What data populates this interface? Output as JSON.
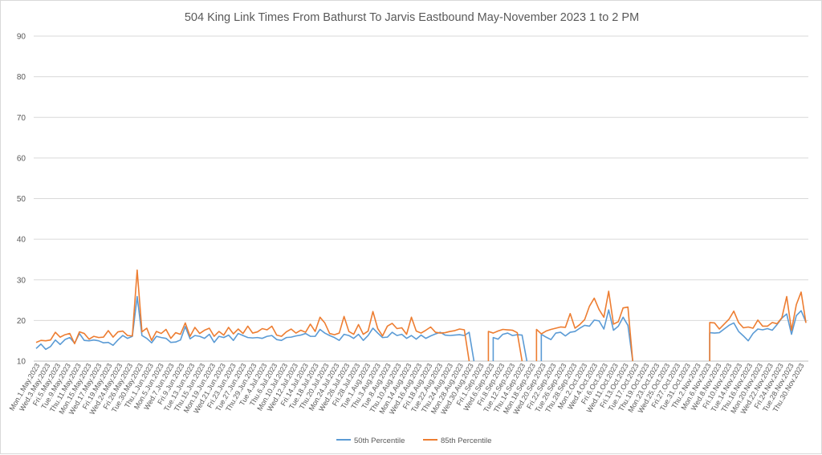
{
  "chart_data": {
    "type": "line",
    "title": "504 King Link Times From Bathurst To Jarvis Eastbound May-November 2023 1 to 2 PM",
    "xlabel": "",
    "ylabel": "",
    "ylim": [
      10,
      90
    ],
    "yticks": [
      10,
      20,
      30,
      40,
      50,
      60,
      70,
      80,
      90
    ],
    "grid": true,
    "legend_position": "bottom",
    "colors": {
      "p50": "#5b9bd5",
      "p85": "#ed7d31",
      "grid": "#d9d9d9",
      "axis": "#bfbfbf",
      "text": "#595959"
    },
    "tick_labels": [
      "Mon.1.May.2023",
      "Wed.3.May.2023",
      "Fri.5.May.2023",
      "Tue.9.May.2023",
      "Thu.11.May.2023",
      "Mon.15.May.2023",
      "Wed.17.May.2023",
      "Fri.19.May.2023",
      "Wed.24.May.2023",
      "Fri.26.May.2023",
      "Tue.30.May.2023",
      "Thu.1.Jun.2023",
      "Mon.5.Jun.2023",
      "Wed.7.Jun.2023",
      "Fri.9.Jun.2023",
      "Tue.13.Jun.2023",
      "Thu.15.Jun.2023",
      "Mon.19.Jun.2023",
      "Wed.21.Jun.2023",
      "Fri.23.Jun.2023",
      "Tue.27.Jun.2023",
      "Thu.29.Jun.2023",
      "Tue.4.Jul.2023",
      "Thu.6.Jul.2023",
      "Mon.10.Jul.2023",
      "Wed.12.Jul.2023",
      "Fri.14.Jul.2023",
      "Tue.18.Jul.2023",
      "Thu.20.Jul.2023",
      "Mon.24.Jul.2023",
      "Wed.26.Jul.2023",
      "Fri.28.Jul.2023",
      "Tue.1.Aug.2023",
      "Thu.3.Aug.2023",
      "Tue.8.Aug.2023",
      "Thu.10.Aug.2023",
      "Mon.14.Aug.2023",
      "Wed.16.Aug.2023",
      "Fri.18.Aug.2023",
      "Tue.22.Aug.2023",
      "Thu.24.Aug.2023",
      "Mon.28.Aug.2023",
      "Wed.30.Aug.2023",
      "Fri.1.Sep.2023",
      "Wed.6.Sep.2023",
      "Fri.8.Sep.2023",
      "Tue.12.Sep.2023",
      "Thu.14.Sep.2023",
      "Mon.18.Sep.2023",
      "Wed.20.Sep.2023",
      "Fri.22.Sep.2023",
      "Tue.26.Sep.2023",
      "Thu.28.Sep.2023",
      "Mon.2.Oct.2023",
      "Wed.4.Oct.2023",
      "Fri.6.Oct.2023",
      "Wed.11.Oct.2023",
      "Fri.13.Oct.2023",
      "Tue.17.Oct.2023",
      "Thu.19.Oct.2023",
      "Mon.23.Oct.2023",
      "Wed.25.Oct.2023",
      "Fri.27.Oct.2023",
      "Tue.31.Oct.2023",
      "Thu.2.Nov.2023",
      "Mon.6.Nov.2023",
      "Wed.8.Nov.2023",
      "Fri.10.Nov.2023",
      "Tue.14.Nov.2023",
      "Thu.16.Nov.2023",
      "Mon.20.Nov.2023",
      "Wed.22.Nov.2023",
      "Fri.24.Nov.2023",
      "Tue.28.Nov.2023",
      "Thu.30.Nov.2023"
    ],
    "series": [
      {
        "name": "50th Percentile",
        "values": [
          13.1,
          14.2,
          12.9,
          13.6,
          15.2,
          14.1,
          15.3,
          15.8,
          14.4,
          16.8,
          15.1,
          15.0,
          15.2,
          15.0,
          14.5,
          14.6,
          13.9,
          15.2,
          16.3,
          15.6,
          16.1,
          25.9,
          16.3,
          15.6,
          14.5,
          16.1,
          15.8,
          15.6,
          14.6,
          14.7,
          15.2,
          18.5,
          15.5,
          16.3,
          16.1,
          15.6,
          16.6,
          14.6,
          16.1,
          15.8,
          16.4,
          15.1,
          16.8,
          16.3,
          15.8,
          15.7,
          15.8,
          15.6,
          16.1,
          16.3,
          15.3,
          15.1,
          15.8,
          15.9,
          16.2,
          16.4,
          16.8,
          16.1,
          16.1,
          17.8,
          16.9,
          16.3,
          15.8,
          15.1,
          16.6,
          16.3,
          15.6,
          16.6,
          15.1,
          16.3,
          18.1,
          16.9,
          15.8,
          15.9,
          17.1,
          16.3,
          16.6,
          15.6,
          16.3,
          15.4,
          16.4,
          15.6,
          16.2,
          16.7,
          17.1,
          16.4,
          16.3,
          16.4,
          16.5,
          16.3,
          17.1,
          null,
          null,
          null,
          null,
          15.8,
          15.4,
          16.6,
          16.9,
          16.3,
          16.5,
          16.4,
          null,
          null,
          null,
          16.6,
          15.9,
          15.3,
          16.9,
          17.1,
          16.2,
          17.1,
          17.3,
          18.1,
          18.8,
          18.6,
          20.1,
          19.9,
          17.9,
          22.6,
          17.6,
          18.6,
          20.8,
          18.8,
          null,
          null,
          null,
          null,
          null,
          null,
          null,
          null,
          null,
          null,
          null,
          null,
          null,
          null,
          null,
          null,
          17.0,
          16.9,
          17.0,
          17.9,
          18.8,
          19.4,
          17.3,
          16.2,
          15.0,
          16.8,
          17.9,
          17.7,
          18.0,
          17.6,
          19.0,
          20.6,
          21.6,
          16.6,
          21.2,
          22.4,
          19.6
        ]
      },
      {
        "name": "85th Percentile",
        "values": [
          14.6,
          15.1,
          15.0,
          15.2,
          17.1,
          15.9,
          16.5,
          16.8,
          14.3,
          17.2,
          16.8,
          15.4,
          16.1,
          15.8,
          15.9,
          17.5,
          15.9,
          17.2,
          17.4,
          16.3,
          16.2,
          32.4,
          17.2,
          18.1,
          15.1,
          17.3,
          16.8,
          17.8,
          15.6,
          17.0,
          16.6,
          19.4,
          16.1,
          18.3,
          16.8,
          17.6,
          18.1,
          16.1,
          17.3,
          16.4,
          18.3,
          16.7,
          17.9,
          16.8,
          18.6,
          16.9,
          17.2,
          18.0,
          17.7,
          18.6,
          16.4,
          16.1,
          17.2,
          17.9,
          16.9,
          17.6,
          17.1,
          19.1,
          17.3,
          20.8,
          19.4,
          16.8,
          16.5,
          16.9,
          21.0,
          17.3,
          16.6,
          19.0,
          16.6,
          17.4,
          22.2,
          18.0,
          16.2,
          18.6,
          19.3,
          18.0,
          18.2,
          16.6,
          20.8,
          17.4,
          16.9,
          17.6,
          18.4,
          17.1,
          16.9,
          17.0,
          17.3,
          17.5,
          17.9,
          17.7,
          null,
          null,
          null,
          null,
          17.3,
          16.9,
          17.4,
          17.8,
          17.7,
          17.6,
          17.0,
          null,
          null,
          null,
          17.8,
          16.7,
          17.4,
          17.8,
          18.1,
          18.4,
          18.3,
          21.7,
          18.1,
          19.0,
          20.2,
          23.5,
          25.5,
          22.7,
          20.8,
          27.2,
          19.1,
          19.7,
          23.1,
          23.3,
          null,
          null,
          null,
          null,
          null,
          null,
          null,
          null,
          null,
          null,
          null,
          null,
          null,
          null,
          null,
          null,
          19.5,
          19.4,
          17.9,
          19.1,
          20.3,
          22.3,
          19.5,
          18.2,
          18.4,
          18.1,
          20.1,
          18.6,
          18.6,
          19.5,
          19.2,
          20.7,
          25.9,
          17.6,
          23.9,
          27.0,
          19.4
        ]
      }
    ]
  }
}
